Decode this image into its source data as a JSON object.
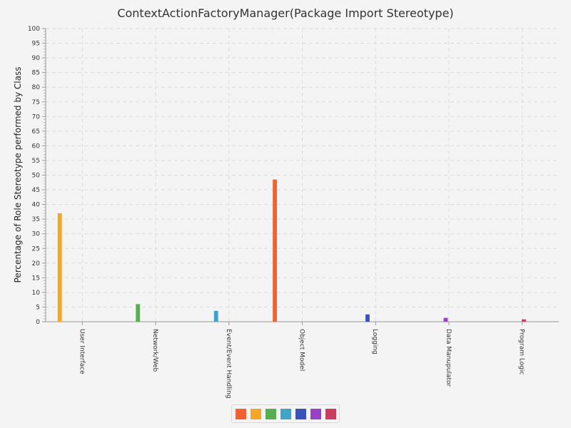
{
  "chart_data": {
    "type": "bar",
    "title": "ContextActionFactoryManager(Package Import Stereotype)",
    "xlabel": "",
    "ylabel": "Percentage of Role Stereotype performed by Class",
    "ylim": [
      0,
      100
    ],
    "yticks": [
      0,
      5,
      10,
      15,
      20,
      25,
      30,
      35,
      40,
      45,
      50,
      55,
      60,
      65,
      70,
      75,
      80,
      85,
      90,
      95,
      100
    ],
    "grid": true,
    "legend_position": "bottom",
    "categories": [
      "User Interface",
      "Network/Web",
      "Event/Event Handling",
      "Object Model",
      "Logging",
      "Data Manupulator",
      "Program Logic"
    ],
    "series": [
      {
        "color": "#f0622f",
        "values": [
          0,
          0,
          0,
          48.5,
          0,
          0,
          0
        ]
      },
      {
        "color": "#f5a623",
        "values": [
          37,
          0,
          0,
          0,
          0,
          0,
          0
        ]
      },
      {
        "color": "#56b04f",
        "values": [
          0,
          6,
          0,
          0,
          0,
          0,
          0
        ]
      },
      {
        "color": "#3ea4c8",
        "values": [
          0,
          0,
          3.7,
          0,
          0,
          0,
          0
        ]
      },
      {
        "color": "#3b52b8",
        "values": [
          0,
          0,
          0,
          0,
          2.5,
          0,
          0
        ]
      },
      {
        "color": "#9a3fc8",
        "values": [
          0,
          0,
          0,
          0,
          0,
          1.3,
          0
        ]
      },
      {
        "color": "#c83c60",
        "values": [
          0,
          0,
          0,
          0,
          0,
          0,
          0.8
        ]
      }
    ]
  }
}
